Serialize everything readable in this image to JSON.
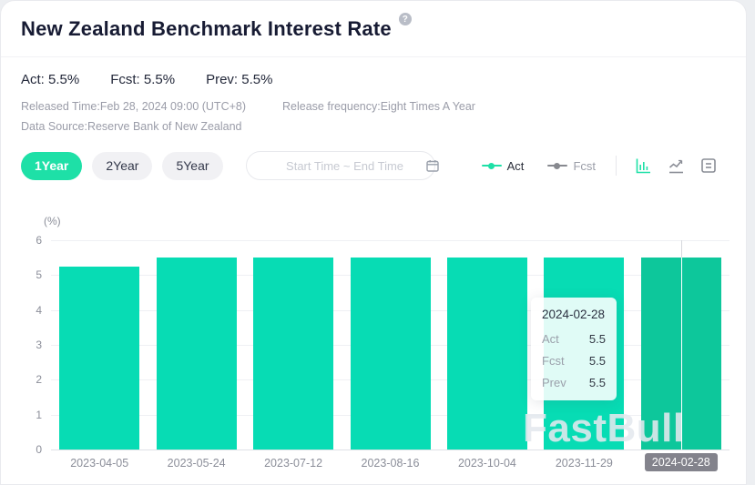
{
  "header": {
    "title": "New Zealand Benchmark Interest Rate",
    "help_icon": "?"
  },
  "stats": {
    "act": "Act: 5.5%",
    "fcst": "Fcst: 5.5%",
    "prev": "Prev: 5.5%"
  },
  "meta": {
    "released_time": "Released Time:Feb 28, 2024 09:00 (UTC+8)",
    "release_frequency": "Release frequency:Eight Times A Year",
    "data_source": "Data Source:Reserve Bank of New Zealand"
  },
  "toolbar": {
    "range_buttons": [
      {
        "label": "1Year",
        "active": true
      },
      {
        "label": "2Year",
        "active": false
      },
      {
        "label": "5Year",
        "active": false
      }
    ],
    "date_picker_placeholder": "Start Time ~ End Time",
    "legend": [
      {
        "label": "Act",
        "color": "#1ee0a7",
        "enabled": true
      },
      {
        "label": "Fcst",
        "color": "#87898f",
        "enabled": false
      }
    ],
    "chart_type_icons": [
      "bar-chart-icon",
      "line-chart-icon",
      "data-table-icon"
    ],
    "active_chart_type": "bar"
  },
  "chart_data": {
    "type": "bar",
    "title": "New Zealand Benchmark Interest Rate",
    "unit_label": "(%)",
    "ylabel": "(%)",
    "xlabel": "",
    "categories": [
      "2023-04-05",
      "2023-05-24",
      "2023-07-12",
      "2023-08-16",
      "2023-10-04",
      "2023-11-29",
      "2024-02-28"
    ],
    "values": [
      5.25,
      5.5,
      5.5,
      5.5,
      5.5,
      5.5,
      5.5
    ],
    "series": [
      {
        "name": "Act",
        "values": [
          5.25,
          5.5,
          5.5,
          5.5,
          5.5,
          5.5,
          5.5
        ]
      }
    ],
    "ylim": [
      0,
      6
    ],
    "yticks": [
      0,
      1,
      2,
      3,
      4,
      5,
      6
    ],
    "grid": true,
    "legend_position": "top-right",
    "bar_color": "#07dcb4",
    "highlight_bar_color": "#0dc79b",
    "highlighted_index": 6
  },
  "tooltip": {
    "date": "2024-02-28",
    "rows": [
      {
        "label": "Act",
        "value": "5.5"
      },
      {
        "label": "Fcst",
        "value": "5.5"
      },
      {
        "label": "Prev",
        "value": "5.5"
      }
    ]
  },
  "watermark": "FastBull",
  "colors": {
    "accent_green": "#1ee0a7",
    "bar_green": "#07dcb4",
    "bar_green_dark": "#0dc79b",
    "title_text": "#171b33",
    "meta_text": "#9a9ca8",
    "axis_text": "#8b8e99",
    "x_highlight_bg": "#83838c"
  }
}
